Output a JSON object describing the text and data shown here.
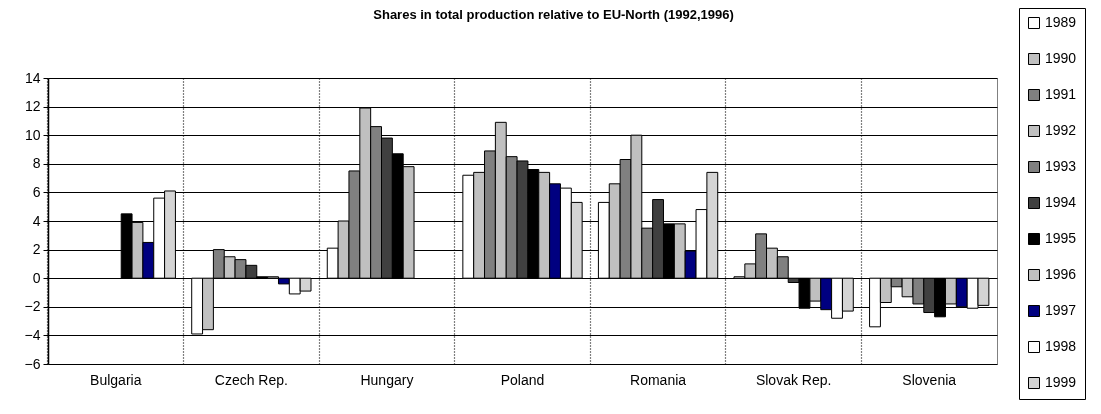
{
  "chart_data": {
    "type": "bar",
    "title": "Shares in total production relative to EU-North (1992,1996)",
    "categories": [
      "Bulgaria",
      "Czech Rep.",
      "Hungary",
      "Poland",
      "Romania",
      "Slovak Rep.",
      "Slovenia"
    ],
    "series": [
      {
        "name": "1989",
        "color": "#ffffff",
        "values": [
          null,
          -3.9,
          2.1,
          7.2,
          5.3,
          0.1,
          -3.4
        ]
      },
      {
        "name": "1990",
        "color": "#c0c0c0",
        "values": [
          null,
          -3.6,
          4.0,
          7.4,
          6.6,
          1.0,
          -1.7
        ]
      },
      {
        "name": "1991",
        "color": "#808080",
        "values": [
          null,
          2.0,
          7.5,
          8.9,
          8.3,
          3.1,
          -0.6
        ]
      },
      {
        "name": "1992",
        "color": "#c0c0c0",
        "values": [
          null,
          1.5,
          11.9,
          10.9,
          10.0,
          2.1,
          -1.3
        ]
      },
      {
        "name": "1993",
        "color": "#808080",
        "values": [
          null,
          1.3,
          10.6,
          8.5,
          3.5,
          1.5,
          -1.8
        ]
      },
      {
        "name": "1994",
        "color": "#404040",
        "values": [
          null,
          0.9,
          9.8,
          8.2,
          5.5,
          -0.3,
          -2.4
        ]
      },
      {
        "name": "1995",
        "color": "#000000",
        "values": [
          4.5,
          0.1,
          8.7,
          7.6,
          3.8,
          -2.1,
          -2.7
        ]
      },
      {
        "name": "1996",
        "color": "#c0c0c0",
        "values": [
          3.9,
          0.1,
          7.8,
          7.4,
          3.8,
          -1.6,
          -1.8
        ]
      },
      {
        "name": "1997",
        "color": "#000080",
        "values": [
          2.5,
          -0.4,
          null,
          6.6,
          1.9,
          -2.2,
          -2.0
        ]
      },
      {
        "name": "1998",
        "color": "#ffffff",
        "values": [
          5.6,
          -1.1,
          null,
          6.3,
          4.8,
          -2.8,
          -2.1
        ]
      },
      {
        "name": "1999",
        "color": "#d4d4d4",
        "values": [
          6.1,
          -0.9,
          null,
          5.3,
          7.4,
          -2.3,
          -1.9
        ]
      }
    ],
    "ylim": [
      -6,
      14
    ],
    "yticks": [
      -6,
      -4,
      -2,
      0,
      2,
      4,
      6,
      8,
      10,
      12,
      14
    ],
    "grid": true,
    "legend": "right"
  }
}
